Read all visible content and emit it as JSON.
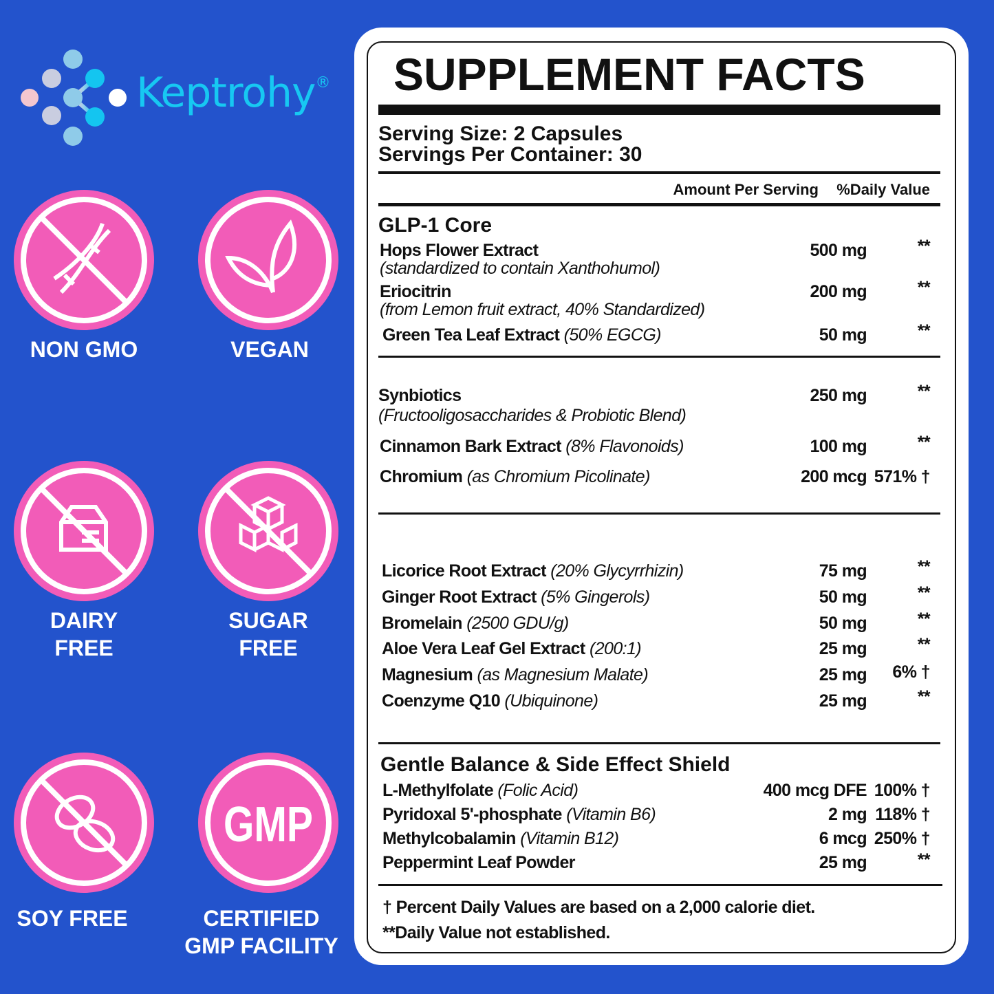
{
  "brand": {
    "name": "Keptrohy",
    "registered": "®"
  },
  "colors": {
    "background": "#2353cc",
    "badge_pink": "#f25cb8",
    "brand_cyan": "#17c8f2"
  },
  "badges": [
    {
      "label": "NON GMO",
      "icon": "dna-icon"
    },
    {
      "label": "VEGAN",
      "icon": "leaf-icon"
    },
    {
      "label": "DAIRY",
      "label2": "FREE",
      "icon": "milk-carton-icon"
    },
    {
      "label": "SUGAR",
      "label2": "FREE",
      "icon": "sugar-cubes-icon"
    },
    {
      "label": "SOY FREE",
      "icon": "soybean-icon"
    },
    {
      "label": "CERTIFIED",
      "label2": "GMP FACILITY",
      "icon_text": "GMP"
    }
  ],
  "facts": {
    "title": "SUPPLEMENT FACTS",
    "serving_size": "Serving Size: 2 Capsules",
    "servings_per_container": "Servings Per Container: 30",
    "col_amount": "Amount Per Serving",
    "col_dv": "%Daily Value",
    "sections": [
      {
        "heading": "GLP-1 Core",
        "rows": [
          {
            "name": "Hops Flower Extract",
            "sub": "(standardized to contain Xanthohumol)",
            "amount": "500 mg",
            "dv": "**"
          },
          {
            "name": "Eriocitrin",
            "sub": "(from Lemon fruit extract, 40% Standardized)",
            "amount": "200 mg",
            "dv": "**"
          },
          {
            "name": "Green Tea Leaf Extract",
            "note": "(50% EGCG)",
            "amount": "50 mg",
            "dv": "**"
          }
        ]
      },
      {
        "rows": [
          {
            "name": "Synbiotics",
            "sub": "(Fructooligosaccharides & Probiotic Blend)",
            "amount": "250 mg",
            "dv": "**"
          },
          {
            "name": "Cinnamon Bark Extract",
            "note": "(8% Flavonoids)",
            "amount": "100 mg",
            "dv": "**"
          },
          {
            "name": "Chromium",
            "note": "(as Chromium Picolinate)",
            "amount": "200 mcg",
            "dv": "571% †"
          }
        ]
      },
      {
        "rows": [
          {
            "name": "Licorice Root Extract",
            "note": "(20% Glycyrrhizin)",
            "amount": "75 mg",
            "dv": "**"
          },
          {
            "name": "Ginger Root Extract",
            "note": " (5% Gingerols)",
            "amount": "50 mg",
            "dv": "**"
          },
          {
            "name": "Bromelain",
            "note": " (2500 GDU/g)",
            "amount": "50 mg",
            "dv": "**"
          },
          {
            "name": "Aloe Vera Leaf Gel Extract",
            "note": "(200:1)",
            "amount": "25 mg",
            "dv": "**"
          },
          {
            "name": "Magnesium",
            "note": "(as Magnesium Malate)",
            "amount": "25 mg",
            "dv": "6% †"
          },
          {
            "name": "Coenzyme Q10",
            "note": "(Ubiquinone)",
            "amount": "25 mg",
            "dv": "**"
          }
        ]
      },
      {
        "heading": "Gentle Balance & Side Effect Shield",
        "rows": [
          {
            "name": "L-Methylfolate",
            "note": " (Folic Acid)",
            "amount": "400 mcg DFE",
            "dv": "100% †"
          },
          {
            "name": "Pyridoxal 5'-phosphate",
            "note": "(Vitamin B6)",
            "amount": "2 mg",
            "dv": "118% †"
          },
          {
            "name": "Methylcobalamin",
            "note": "(Vitamin B12)",
            "amount": "6 mcg",
            "dv": "250% †"
          },
          {
            "name": "Peppermint Leaf Powder",
            "amount": "25 mg",
            "dv": "**"
          }
        ]
      }
    ],
    "footnote1": "† Percent Daily Values are based on a 2,000 calorie diet.",
    "footnote2": "**Daily Value not established."
  }
}
